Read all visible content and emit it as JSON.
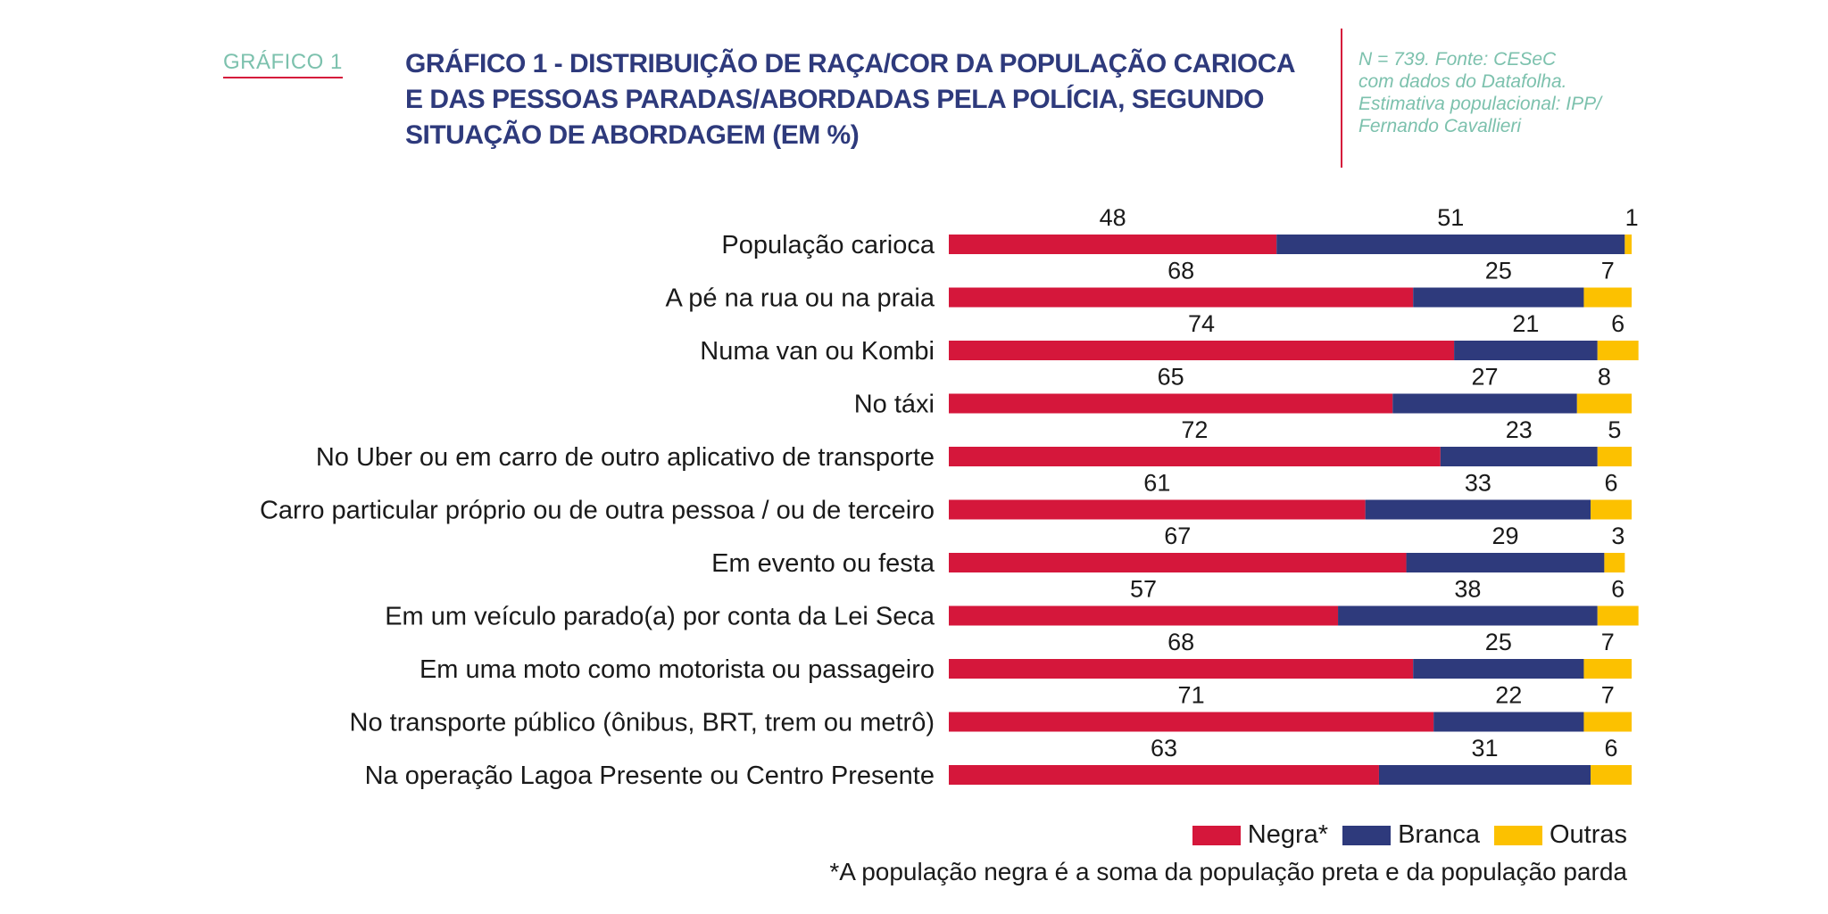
{
  "header": {
    "kicker": "GRÁFICO 1",
    "title": "GRÁFICO 1 - DISTRIBUIÇÃO DE RAÇA/COR DA POPULAÇÃO CARIOCA E DAS PESSOAS PARADAS/ABORDADAS PELA POLÍCIA, SEGUNDO SITUAÇÃO DE ABORDAGEM (EM %)",
    "source_lines": [
      "N = 739. Fonte: CESeC",
      "com dados do Datafolha.",
      "Estimativa populacional: IPP/",
      "Fernando Cavallieri"
    ]
  },
  "legend": {
    "negra": "Negra*",
    "branca": "Branca",
    "outras": "Outras"
  },
  "footnote": "*A população negra é a soma da população preta e da população parda",
  "colors": {
    "negra": "#d5173b",
    "branca": "#2e3a7c",
    "outras": "#fcc100"
  },
  "chart_data": {
    "type": "bar",
    "orientation": "horizontal",
    "stacked": true,
    "unit": "%",
    "xlim": [
      0,
      100
    ],
    "grid": false,
    "legend_position": "bottom-right",
    "categories": [
      "População carioca",
      "A pé na rua ou na praia",
      "Numa van ou Kombi",
      "No táxi",
      "No Uber ou em carro de outro aplicativo de transporte",
      "Carro particular próprio ou de outra pessoa / ou de terceiro",
      "Em evento ou festa",
      "Em um veículo parado(a) por conta da Lei Seca",
      "Em uma moto como motorista ou passageiro",
      "No transporte público (ônibus, BRT, trem ou metrô)",
      "Na operação Lagoa Presente ou Centro Presente"
    ],
    "series": [
      {
        "name": "Negra*",
        "color": "#d5173b",
        "values": [
          48,
          68,
          74,
          65,
          72,
          61,
          67,
          57,
          68,
          71,
          63
        ]
      },
      {
        "name": "Branca",
        "color": "#2e3a7c",
        "values": [
          51,
          25,
          21,
          27,
          23,
          33,
          29,
          38,
          25,
          22,
          31
        ]
      },
      {
        "name": "Outras",
        "color": "#fcc100",
        "values": [
          1,
          7,
          6,
          8,
          5,
          6,
          3,
          6,
          7,
          7,
          6
        ]
      }
    ]
  }
}
